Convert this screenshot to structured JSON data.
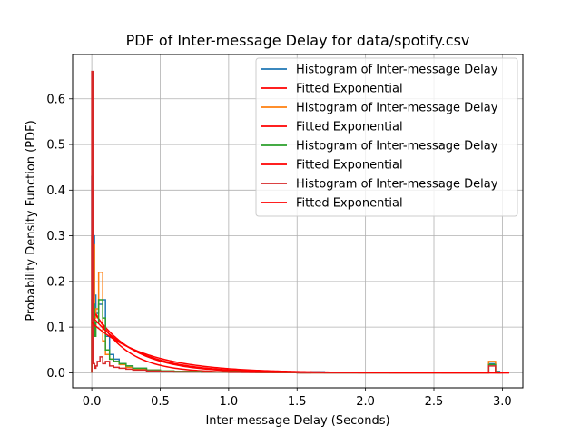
{
  "chart_data": {
    "type": "line",
    "title": "PDF of Inter-message Delay for data/spotify.csv",
    "xlabel": "Inter-message Delay (Seconds)",
    "ylabel": "Probability Density Function (PDF)",
    "xlim": [
      -0.14,
      3.15
    ],
    "ylim": [
      -0.033,
      0.697
    ],
    "xticks": [
      0.0,
      0.5,
      1.0,
      1.5,
      2.0,
      2.5,
      3.0
    ],
    "xtick_labels": [
      "0.0",
      "0.5",
      "1.0",
      "1.5",
      "2.0",
      "2.5",
      "3.0"
    ],
    "yticks": [
      0.0,
      0.1,
      0.2,
      0.3,
      0.4,
      0.5,
      0.6
    ],
    "ytick_labels": [
      "0.0",
      "0.1",
      "0.2",
      "0.3",
      "0.4",
      "0.5",
      "0.6"
    ],
    "grid": true,
    "legend_position": "top-right",
    "colors": {
      "blue": "#1f77b4",
      "orange": "#ff7f0e",
      "green": "#2ca02c",
      "darkred": "#d62728",
      "red": "#ff0000"
    },
    "series": [
      {
        "name": "Histogram of Inter-message Delay",
        "kind": "step",
        "color": "#1f77b4",
        "x": [
          0.0,
          0.01,
          0.02,
          0.03,
          0.05,
          0.08,
          0.1,
          0.13,
          0.16,
          0.2,
          0.25,
          0.3,
          0.4,
          0.5,
          0.6,
          0.8,
          1.0,
          1.05,
          1.1,
          1.2,
          1.5,
          1.6,
          1.7,
          2.0,
          2.5,
          2.9,
          2.95,
          2.98
        ],
        "y": [
          0.43,
          0.3,
          0.17,
          0.13,
          0.15,
          0.16,
          0.08,
          0.04,
          0.03,
          0.02,
          0.015,
          0.01,
          0.006,
          0.004,
          0.003,
          0.002,
          0.003,
          0.005,
          0.002,
          0.001,
          0.0,
          0.002,
          0.0,
          0.0,
          0.0,
          0.02,
          0.003,
          0.0
        ]
      },
      {
        "name": "Fitted Exponential",
        "kind": "exp",
        "color": "#ff0000",
        "y0": 0.148,
        "rate": 4.4,
        "xmax": 3.05
      },
      {
        "name": "Histogram of Inter-message Delay",
        "kind": "step",
        "color": "#ff7f0e",
        "x": [
          0.0,
          0.01,
          0.02,
          0.03,
          0.05,
          0.08,
          0.1,
          0.13,
          0.16,
          0.2,
          0.25,
          0.3,
          0.4,
          0.5,
          0.6,
          0.8,
          1.0,
          1.2,
          1.5,
          2.0,
          2.5,
          2.9,
          2.95,
          2.97
        ],
        "y": [
          0.3,
          0.28,
          0.12,
          0.14,
          0.22,
          0.07,
          0.04,
          0.03,
          0.025,
          0.018,
          0.012,
          0.008,
          0.006,
          0.004,
          0.003,
          0.002,
          0.002,
          0.001,
          0.0,
          0.0,
          0.0,
          0.025,
          0.002,
          0.0
        ]
      },
      {
        "name": "Fitted Exponential",
        "kind": "exp",
        "color": "#ff0000",
        "y0": 0.14,
        "rate": 3.4,
        "xmax": 3.05
      },
      {
        "name": "Histogram of Inter-message Delay",
        "kind": "step",
        "color": "#2ca02c",
        "x": [
          0.0,
          0.01,
          0.02,
          0.03,
          0.05,
          0.08,
          0.1,
          0.13,
          0.16,
          0.2,
          0.25,
          0.3,
          0.4,
          0.5,
          0.6,
          0.8,
          1.0,
          1.2,
          1.5,
          2.0,
          2.5,
          2.9,
          2.95,
          2.97
        ],
        "y": [
          0.16,
          0.15,
          0.08,
          0.11,
          0.16,
          0.12,
          0.05,
          0.03,
          0.025,
          0.02,
          0.015,
          0.01,
          0.006,
          0.004,
          0.003,
          0.002,
          0.002,
          0.001,
          0.0,
          0.0,
          0.0,
          0.018,
          0.002,
          0.0
        ]
      },
      {
        "name": "Fitted Exponential",
        "kind": "exp",
        "color": "#ff0000",
        "y0": 0.125,
        "rate": 3.0,
        "xmax": 3.05
      },
      {
        "name": "Histogram of Inter-message Delay",
        "kind": "step",
        "color": "#d62728",
        "x": [
          0.0,
          0.01,
          0.02,
          0.03,
          0.04,
          0.06,
          0.08,
          0.1,
          0.13,
          0.16,
          0.2,
          0.25,
          0.3,
          0.4,
          0.5,
          0.6,
          0.8,
          1.0,
          1.5,
          2.0,
          2.5,
          2.9,
          2.95,
          2.97
        ],
        "y": [
          0.66,
          0.02,
          0.01,
          0.015,
          0.025,
          0.035,
          0.02,
          0.025,
          0.015,
          0.012,
          0.01,
          0.008,
          0.006,
          0.004,
          0.003,
          0.002,
          0.002,
          0.001,
          0.0,
          0.0,
          0.0,
          0.015,
          0.0,
          0.0
        ]
      },
      {
        "name": "Fitted Exponential",
        "kind": "exp",
        "color": "#ff0000",
        "y0": 0.11,
        "rate": 2.5,
        "xmax": 3.05
      }
    ]
  }
}
